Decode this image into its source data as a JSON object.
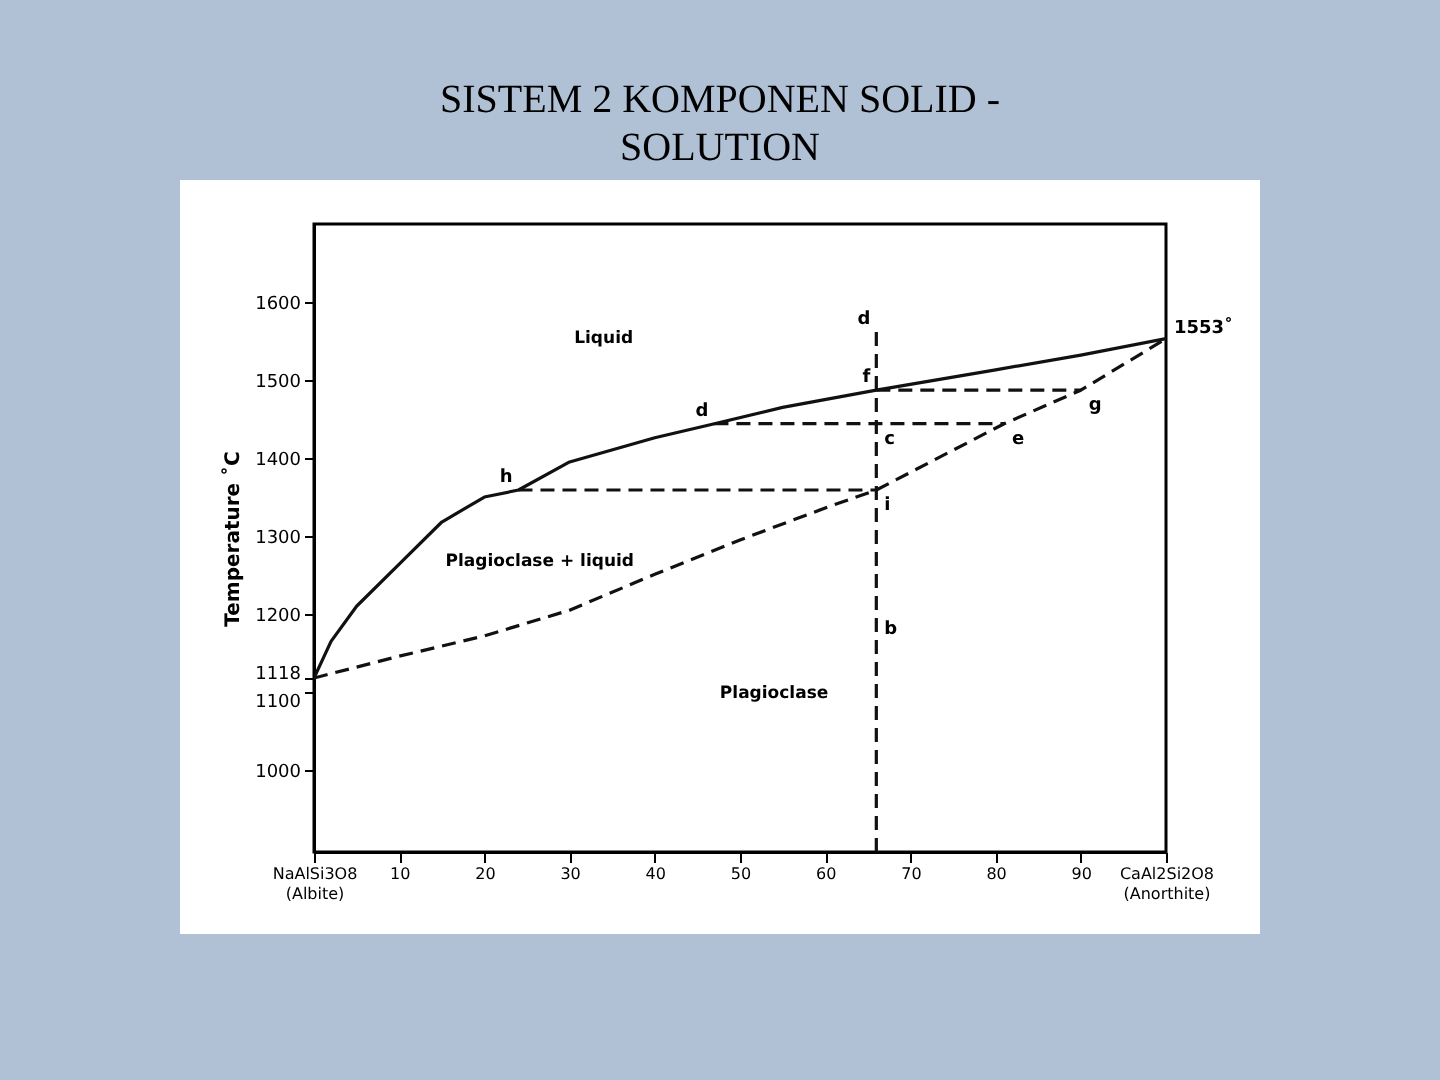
{
  "chart_data": {
    "type": "line",
    "title": "SISTEM 2 KOMPONEN SOLID - SOLUTION",
    "ylabel": "Temperature ˚C",
    "xlim": [
      0,
      100
    ],
    "ylim": [
      895,
      1700
    ],
    "xticks": [
      {
        "value": 0,
        "label": "NaAlSi3O8\n(Albite)"
      },
      10,
      20,
      30,
      40,
      50,
      60,
      70,
      80,
      90,
      {
        "value": 100,
        "label": "CaAl2Si2O8\n(Anorthite)"
      }
    ],
    "yticks": [
      1000,
      1100,
      1118,
      1200,
      1300,
      1400,
      1500,
      1600
    ],
    "grid": false,
    "marker": "none",
    "series": [
      {
        "color": "#111111",
        "line_style": "solid",
        "x": [
          0,
          2,
          5,
          10,
          15,
          20,
          24,
          30,
          40,
          47,
          55,
          66,
          80,
          90,
          100
        ],
        "values": [
          1118,
          1165,
          1210,
          1264,
          1318,
          1350,
          1359,
          1395,
          1426,
          1444,
          1465,
          1487,
          1513,
          1532,
          1553
        ]
      },
      {
        "color": "#111111",
        "line_style": "dashed",
        "x": [
          0,
          10,
          20,
          30,
          40,
          50,
          60,
          66,
          81,
          90,
          100
        ],
        "values": [
          1118,
          1146,
          1172,
          1205,
          1251,
          1295,
          1336,
          1359,
          1444,
          1487,
          1553
        ]
      },
      {
        "color": "#111111",
        "line_style": "dashed",
        "x": [
          24,
          66
        ],
        "values": [
          1359,
          1359
        ]
      },
      {
        "color": "#111111",
        "line_style": "dashed",
        "x": [
          47,
          81
        ],
        "values": [
          1444,
          1444
        ]
      },
      {
        "color": "#111111",
        "line_style": "dashed",
        "x": [
          66,
          90
        ],
        "values": [
          1487,
          1487
        ]
      },
      {
        "color": "#111111",
        "line_style": "dashed",
        "x": [
          66,
          66
        ],
        "values": [
          895,
          1562
        ]
      }
    ],
    "annotations": [
      "Liquid",
      "Plagioclase + liquid",
      "Plagioclase",
      {
        "text": "d",
        "x": 66,
        "y": 1562
      },
      {
        "text": "f",
        "x": 66,
        "y": 1487
      },
      {
        "text": "c",
        "x": 66,
        "y": 1444
      },
      {
        "text": "d",
        "x": 47,
        "y": 1444
      },
      {
        "text": "e",
        "x": 81,
        "y": 1444
      },
      {
        "text": "g",
        "x": 90,
        "y": 1487
      },
      {
        "text": "h",
        "x": 24,
        "y": 1359
      },
      {
        "text": "i",
        "x": 66,
        "y": 1359
      },
      {
        "text": "b",
        "x": 66,
        "y": 1200
      },
      {
        "text": "1553˚",
        "x": 100,
        "y": 1553
      }
    ]
  }
}
